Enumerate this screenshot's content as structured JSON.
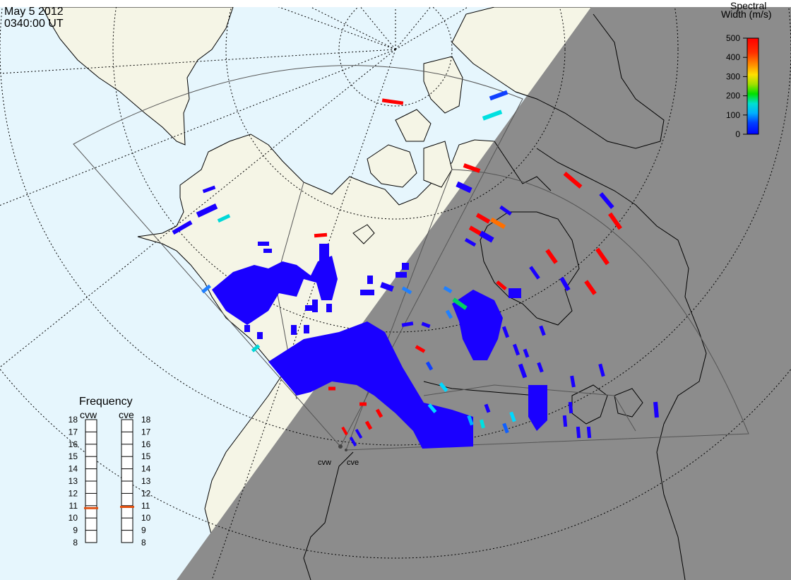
{
  "title": {
    "date": "May  5 2012",
    "time": "0340:00 UT"
  },
  "colorbar": {
    "title_line1": "Spectral",
    "title_line2": "Width (m/s)",
    "ticks": [
      "500",
      "400",
      "300",
      "200",
      "100",
      "0"
    ],
    "tick_values": [
      500,
      400,
      300,
      200,
      100,
      0
    ],
    "range": [
      0,
      500
    ],
    "colors": [
      "#0000ff",
      "#0040ff",
      "#00b0ff",
      "#00e0d0",
      "#00e000",
      "#a0e000",
      "#ffe000",
      "#ff9000",
      "#ff3000",
      "#ff0000"
    ]
  },
  "frequency_panel": {
    "title": "Frequency",
    "radars": [
      {
        "name": "cvw",
        "frequency_mhz": 10.8
      },
      {
        "name": "cve",
        "frequency_mhz": 10.9
      }
    ],
    "ticks": [
      "18",
      "17",
      "16",
      "15",
      "14",
      "13",
      "12",
      "11",
      "10",
      "9",
      "8"
    ],
    "range": [
      8,
      18
    ],
    "marker_color": "#e05010"
  },
  "radar_sites": [
    {
      "name": "cvw"
    },
    {
      "name": "cve"
    }
  ],
  "map_colors": {
    "ocean": "#e6f6fd",
    "land": "#f5f5e6",
    "night": "#8c8c8c",
    "coast": "#000000",
    "grid": "#000000",
    "fov": "#555555",
    "scatter_low": "#1a00ff"
  }
}
